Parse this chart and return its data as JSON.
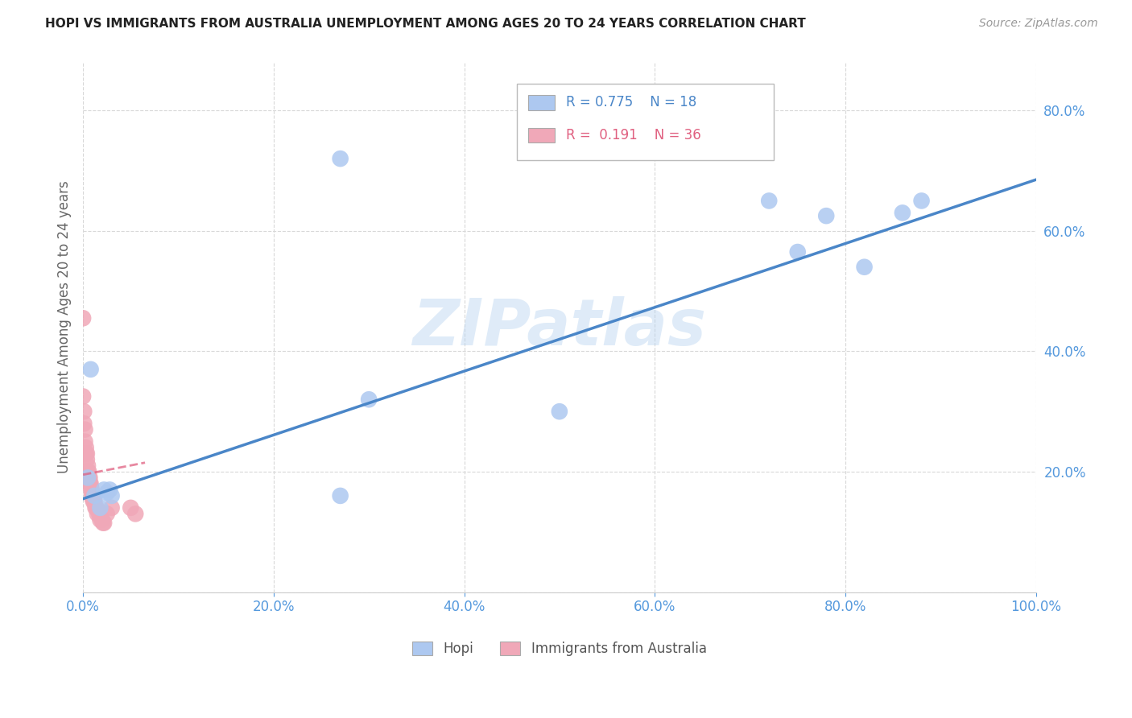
{
  "title": "HOPI VS IMMIGRANTS FROM AUSTRALIA UNEMPLOYMENT AMONG AGES 20 TO 24 YEARS CORRELATION CHART",
  "source": "Source: ZipAtlas.com",
  "ylabel": "Unemployment Among Ages 20 to 24 years",
  "legend_hopi_label": "Hopi",
  "legend_imm_label": "Immigrants from Australia",
  "hopi_R": "0.775",
  "hopi_N": "18",
  "imm_R": "0.191",
  "imm_N": "36",
  "hopi_color": "#adc8f0",
  "hopi_line_color": "#4a86c8",
  "imm_color": "#f0a8b8",
  "imm_line_color": "#e06080",
  "watermark": "ZIPatlas",
  "xlim": [
    0,
    1.0
  ],
  "ylim": [
    0,
    0.88
  ],
  "xticks": [
    0.0,
    0.2,
    0.4,
    0.6,
    0.8,
    1.0
  ],
  "yticks": [
    0.0,
    0.2,
    0.4,
    0.6,
    0.8
  ],
  "hopi_x": [
    0.005,
    0.008,
    0.012,
    0.018,
    0.022,
    0.025,
    0.028,
    0.03,
    0.27,
    0.5,
    0.72,
    0.75,
    0.78,
    0.82,
    0.86,
    0.88,
    0.3,
    0.27
  ],
  "hopi_y": [
    0.19,
    0.37,
    0.16,
    0.14,
    0.17,
    0.165,
    0.17,
    0.16,
    0.16,
    0.3,
    0.65,
    0.565,
    0.625,
    0.54,
    0.63,
    0.65,
    0.32,
    0.72
  ],
  "imm_x": [
    0.0,
    0.0,
    0.001,
    0.001,
    0.002,
    0.002,
    0.003,
    0.003,
    0.004,
    0.004,
    0.005,
    0.005,
    0.006,
    0.006,
    0.007,
    0.007,
    0.008,
    0.008,
    0.009,
    0.009,
    0.01,
    0.01,
    0.011,
    0.012,
    0.013,
    0.014,
    0.015,
    0.017,
    0.018,
    0.02,
    0.021,
    0.022,
    0.025,
    0.03,
    0.05,
    0.055
  ],
  "imm_y": [
    0.455,
    0.325,
    0.3,
    0.28,
    0.27,
    0.25,
    0.24,
    0.23,
    0.23,
    0.22,
    0.21,
    0.2,
    0.2,
    0.19,
    0.19,
    0.18,
    0.18,
    0.175,
    0.17,
    0.165,
    0.16,
    0.155,
    0.15,
    0.15,
    0.14,
    0.14,
    0.13,
    0.13,
    0.12,
    0.12,
    0.115,
    0.115,
    0.13,
    0.14,
    0.14,
    0.13
  ],
  "hopi_line_x0": 0.0,
  "hopi_line_x1": 1.0,
  "hopi_line_y0": 0.155,
  "hopi_line_y1": 0.685,
  "imm_line_x0": 0.0,
  "imm_line_x1": 0.065,
  "imm_line_y0": 0.195,
  "imm_line_y1": 0.215,
  "background_color": "#ffffff",
  "grid_color": "#d8d8d8",
  "tick_color": "#5599dd",
  "ylabel_color": "#666666",
  "title_color": "#222222",
  "source_color": "#999999"
}
